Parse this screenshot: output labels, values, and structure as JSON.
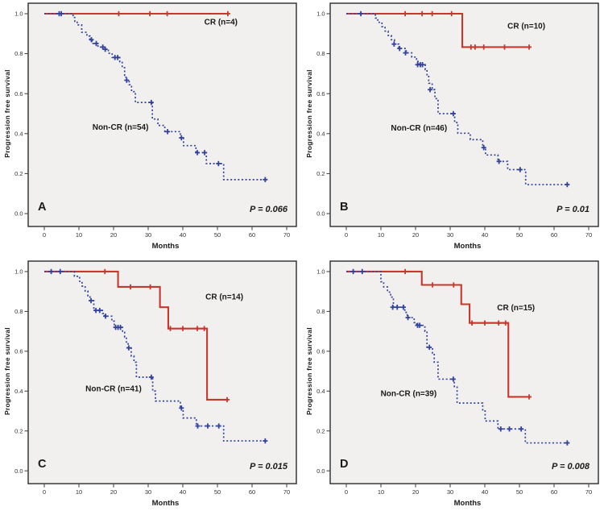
{
  "figure": {
    "colors": {
      "cr_line": "#c5382e",
      "non_cr_line": "#31439b",
      "plot_bg": "#f1f0ee",
      "border": "#2b2b2b",
      "text": "#1a1a1a",
      "tick_text": "#333333",
      "page_bg": "#ffffff"
    }
  },
  "chart_data": [
    {
      "type": "line",
      "panel_letter": "A",
      "p_value": "P = 0.066",
      "xlabel": "Months",
      "ylabel": "Progression free survival",
      "x_ticks": [
        0,
        10,
        20,
        30,
        40,
        50,
        60,
        70
      ],
      "y_ticks": [
        0.0,
        0.2,
        0.4,
        0.6,
        0.8,
        1.0
      ],
      "xlim": [
        0,
        70
      ],
      "ylim": [
        0,
        1.05
      ],
      "grid": false,
      "legend": "inline-annotations",
      "series": [
        {
          "id": "cr",
          "name": "CR (n=4)",
          "label": "CR (n=4)",
          "label_pos": [
            51,
            0.945
          ],
          "style": "solid",
          "color": "#c5382e",
          "steps": [
            [
              0,
              1
            ],
            [
              53,
              1
            ]
          ],
          "censors": [
            [
              21.5,
              1
            ],
            [
              30.5,
              1
            ],
            [
              35.5,
              1
            ],
            [
              53,
              1
            ]
          ]
        },
        {
          "id": "non-cr",
          "name": "Non-CR (n=54)",
          "label": "Non-CR (n=54)",
          "label_pos": [
            22,
            0.42
          ],
          "style": "dotted",
          "color": "#31439b",
          "steps": [
            [
              0,
              1
            ],
            [
              8.3,
              0.981
            ],
            [
              8.8,
              0.962
            ],
            [
              9.5,
              0.944
            ],
            [
              10.8,
              0.907
            ],
            [
              12.3,
              0.888
            ],
            [
              13.2,
              0.87
            ],
            [
              13.8,
              0.851
            ],
            [
              15.5,
              0.833
            ],
            [
              17.5,
              0.822
            ],
            [
              18.5,
              0.802
            ],
            [
              19.6,
              0.781
            ],
            [
              21.8,
              0.76
            ],
            [
              22.5,
              0.73
            ],
            [
              23.2,
              0.692
            ],
            [
              23.6,
              0.667
            ],
            [
              24.5,
              0.645
            ],
            [
              25.2,
              0.61
            ],
            [
              26.3,
              0.556
            ],
            [
              31.2,
              0.473
            ],
            [
              32.8,
              0.441
            ],
            [
              34.8,
              0.41
            ],
            [
              39.3,
              0.379
            ],
            [
              40.2,
              0.34
            ],
            [
              43.8,
              0.305
            ],
            [
              46.8,
              0.25
            ],
            [
              51.8,
              0.17
            ],
            [
              64,
              0.17
            ]
          ],
          "censors": [
            [
              4.3,
              1
            ],
            [
              4.9,
              1
            ],
            [
              13.6,
              0.87
            ],
            [
              15,
              0.851
            ],
            [
              16.9,
              0.833
            ],
            [
              17.6,
              0.822
            ],
            [
              20.4,
              0.781
            ],
            [
              21.2,
              0.781
            ],
            [
              23.8,
              0.667
            ],
            [
              30.9,
              0.556
            ],
            [
              35.6,
              0.41
            ],
            [
              39.6,
              0.379
            ],
            [
              44.2,
              0.305
            ],
            [
              46.3,
              0.305
            ],
            [
              50.3,
              0.25
            ],
            [
              63.8,
              0.17
            ]
          ]
        }
      ]
    },
    {
      "type": "line",
      "panel_letter": "B",
      "p_value": "P = 0.01",
      "xlabel": "Months",
      "ylabel": "Progression free survival",
      "x_ticks": [
        0,
        10,
        20,
        30,
        40,
        50,
        60,
        70
      ],
      "y_ticks": [
        0.0,
        0.2,
        0.4,
        0.6,
        0.8,
        1.0
      ],
      "xlim": [
        0,
        70
      ],
      "ylim": [
        0,
        1.05
      ],
      "grid": false,
      "legend": "inline-annotations",
      "series": [
        {
          "id": "cr",
          "name": "CR (n=10)",
          "label": "CR (n=10)",
          "label_pos": [
            52,
            0.925
          ],
          "style": "solid",
          "color": "#c5382e",
          "steps": [
            [
              0,
              1
            ],
            [
              33.5,
              0.833
            ],
            [
              53,
              0.833
            ]
          ],
          "censors": [
            [
              17,
              1
            ],
            [
              21.9,
              1
            ],
            [
              24.8,
              1
            ],
            [
              30.4,
              1
            ],
            [
              36,
              0.833
            ],
            [
              37.2,
              0.833
            ],
            [
              39.7,
              0.833
            ],
            [
              45.7,
              0.833
            ],
            [
              52.8,
              0.833
            ]
          ]
        },
        {
          "id": "non-cr",
          "name": "Non-CR (n=46)",
          "label": "Non-CR (n=46)",
          "label_pos": [
            21,
            0.415
          ],
          "style": "dotted",
          "color": "#31439b",
          "steps": [
            [
              0,
              1
            ],
            [
              8.4,
              0.978
            ],
            [
              9.1,
              0.957
            ],
            [
              10.3,
              0.935
            ],
            [
              11.2,
              0.913
            ],
            [
              12.1,
              0.891
            ],
            [
              13,
              0.87
            ],
            [
              13.9,
              0.848
            ],
            [
              15.2,
              0.826
            ],
            [
              17.3,
              0.804
            ],
            [
              18.9,
              0.783
            ],
            [
              20.3,
              0.761
            ],
            [
              21,
              0.745
            ],
            [
              22.8,
              0.72
            ],
            [
              23.3,
              0.695
            ],
            [
              23.8,
              0.652
            ],
            [
              24.8,
              0.62
            ],
            [
              25.6,
              0.575
            ],
            [
              26.5,
              0.5
            ],
            [
              31.3,
              0.455
            ],
            [
              32.2,
              0.402
            ],
            [
              35.8,
              0.37
            ],
            [
              39.4,
              0.33
            ],
            [
              40.2,
              0.293
            ],
            [
              43.8,
              0.261
            ],
            [
              46.6,
              0.22
            ],
            [
              51.8,
              0.145
            ],
            [
              64,
              0.145
            ]
          ],
          "censors": [
            [
              4.2,
              1
            ],
            [
              13.8,
              0.848
            ],
            [
              15.4,
              0.826
            ],
            [
              17.1,
              0.804
            ],
            [
              20.6,
              0.745
            ],
            [
              21.4,
              0.745
            ],
            [
              22,
              0.745
            ],
            [
              24.2,
              0.62
            ],
            [
              30.9,
              0.5
            ],
            [
              39.7,
              0.33
            ],
            [
              44.1,
              0.261
            ],
            [
              50.2,
              0.22
            ],
            [
              63.8,
              0.145
            ]
          ]
        }
      ]
    },
    {
      "type": "line",
      "panel_letter": "C",
      "p_value": "P = 0.015",
      "xlabel": "Months",
      "ylabel": "Progression free survival",
      "x_ticks": [
        0,
        10,
        20,
        30,
        40,
        50,
        60,
        70
      ],
      "y_ticks": [
        0.0,
        0.2,
        0.4,
        0.6,
        0.8,
        1.0
      ],
      "xlim": [
        0,
        70
      ],
      "ylim": [
        0,
        1.05
      ],
      "grid": false,
      "legend": "inline-annotations",
      "series": [
        {
          "id": "cr",
          "name": "CR (n=14)",
          "label": "CR (n=14)",
          "label_pos": [
            52,
            0.86
          ],
          "style": "solid",
          "color": "#c5382e",
          "steps": [
            [
              0,
              1
            ],
            [
              21.3,
              0.923
            ],
            [
              33.4,
              0.821
            ],
            [
              35.8,
              0.714
            ],
            [
              47,
              0.357
            ],
            [
              53,
              0.357
            ]
          ],
          "censors": [
            [
              17.5,
              1
            ],
            [
              24.9,
              0.923
            ],
            [
              30.6,
              0.923
            ],
            [
              36.4,
              0.714
            ],
            [
              40,
              0.714
            ],
            [
              44.2,
              0.714
            ],
            [
              46.2,
              0.714
            ],
            [
              52.8,
              0.357
            ]
          ]
        },
        {
          "id": "non-cr",
          "name": "Non-CR (n=41)",
          "label": "Non-CR (n=41)",
          "label_pos": [
            20,
            0.4
          ],
          "style": "dotted",
          "color": "#31439b",
          "steps": [
            [
              0,
              1
            ],
            [
              8.7,
              0.976
            ],
            [
              10.2,
              0.951
            ],
            [
              10.9,
              0.927
            ],
            [
              11.8,
              0.902
            ],
            [
              12.6,
              0.878
            ],
            [
              13.2,
              0.854
            ],
            [
              14.3,
              0.805
            ],
            [
              16.8,
              0.79
            ],
            [
              17.4,
              0.776
            ],
            [
              19.5,
              0.751
            ],
            [
              20.2,
              0.72
            ],
            [
              22.6,
              0.695
            ],
            [
              23.2,
              0.671
            ],
            [
              23.7,
              0.646
            ],
            [
              24.2,
              0.617
            ],
            [
              25.1,
              0.576
            ],
            [
              25.9,
              0.545
            ],
            [
              26.6,
              0.47
            ],
            [
              31.3,
              0.4
            ],
            [
              32.1,
              0.35
            ],
            [
              39.3,
              0.315
            ],
            [
              40.1,
              0.265
            ],
            [
              43.9,
              0.225
            ],
            [
              51.8,
              0.15
            ],
            [
              64,
              0.15
            ]
          ],
          "censors": [
            [
              2,
              1
            ],
            [
              4.6,
              1
            ],
            [
              13.5,
              0.854
            ],
            [
              14.9,
              0.805
            ],
            [
              16,
              0.805
            ],
            [
              17.7,
              0.776
            ],
            [
              20.6,
              0.72
            ],
            [
              21.3,
              0.72
            ],
            [
              22,
              0.72
            ],
            [
              24.4,
              0.617
            ],
            [
              30.9,
              0.47
            ],
            [
              39.6,
              0.315
            ],
            [
              44.3,
              0.225
            ],
            [
              47.2,
              0.225
            ],
            [
              50.4,
              0.225
            ],
            [
              63.8,
              0.15
            ]
          ]
        }
      ]
    },
    {
      "type": "line",
      "panel_letter": "D",
      "p_value": "P = 0.008",
      "xlabel": "Months",
      "ylabel": "Progression free survival",
      "x_ticks": [
        0,
        10,
        20,
        30,
        40,
        50,
        60,
        70
      ],
      "y_ticks": [
        0.0,
        0.2,
        0.4,
        0.6,
        0.8,
        1.0
      ],
      "xlim": [
        0,
        70
      ],
      "ylim": [
        0,
        1.05
      ],
      "grid": false,
      "legend": "inline-annotations",
      "series": [
        {
          "id": "cr",
          "name": "CR (n=15)",
          "label": "CR (n=15)",
          "label_pos": [
            49,
            0.805
          ],
          "style": "solid",
          "color": "#c5382e",
          "steps": [
            [
              0,
              1
            ],
            [
              21.8,
              0.933
            ],
            [
              33.2,
              0.836
            ],
            [
              35.6,
              0.742
            ],
            [
              46.8,
              0.371
            ],
            [
              53,
              0.371
            ]
          ],
          "censors": [
            [
              17,
              1
            ],
            [
              24.9,
              0.933
            ],
            [
              31,
              0.933
            ],
            [
              36.3,
              0.742
            ],
            [
              40,
              0.742
            ],
            [
              44,
              0.742
            ],
            [
              46,
              0.742
            ],
            [
              52.8,
              0.371
            ]
          ]
        },
        {
          "id": "non-cr",
          "name": "Non-CR (n=39)",
          "label": "Non-CR (n=39)",
          "label_pos": [
            18,
            0.375
          ],
          "style": "dotted",
          "color": "#31439b",
          "steps": [
            [
              0,
              1
            ],
            [
              10,
              0.949
            ],
            [
              10.8,
              0.923
            ],
            [
              11.9,
              0.897
            ],
            [
              12.8,
              0.872
            ],
            [
              13.6,
              0.821
            ],
            [
              16.9,
              0.795
            ],
            [
              17.6,
              0.769
            ],
            [
              19.6,
              0.744
            ],
            [
              20.3,
              0.73
            ],
            [
              22.7,
              0.7
            ],
            [
              23.3,
              0.62
            ],
            [
              24.9,
              0.59
            ],
            [
              25.4,
              0.545
            ],
            [
              26.5,
              0.46
            ],
            [
              31.2,
              0.42
            ],
            [
              32,
              0.34
            ],
            [
              39.4,
              0.3
            ],
            [
              40.1,
              0.25
            ],
            [
              43.8,
              0.21
            ],
            [
              51.7,
              0.14
            ],
            [
              64,
              0.14
            ]
          ],
          "censors": [
            [
              2,
              1
            ],
            [
              4.6,
              1
            ],
            [
              13.4,
              0.821
            ],
            [
              14.7,
              0.821
            ],
            [
              16.5,
              0.821
            ],
            [
              17.8,
              0.769
            ],
            [
              20.6,
              0.73
            ],
            [
              21.2,
              0.73
            ],
            [
              24,
              0.62
            ],
            [
              30.9,
              0.46
            ],
            [
              44.6,
              0.21
            ],
            [
              47.1,
              0.21
            ],
            [
              50.5,
              0.21
            ],
            [
              63.8,
              0.14
            ]
          ]
        }
      ]
    }
  ]
}
